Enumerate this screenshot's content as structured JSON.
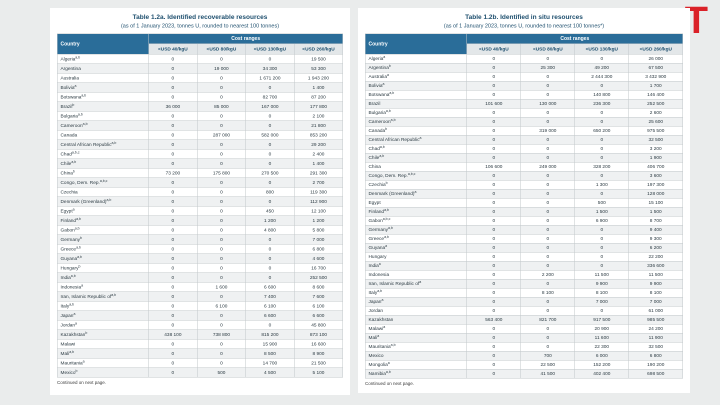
{
  "logo": {
    "letter": "T",
    "color": "#da2128"
  },
  "colors": {
    "header_blue": "#2a6d99",
    "subheader_bg": "#e3e7e9",
    "title_navy": "#1e4f6e",
    "zebra_row": "#eff1f2",
    "logo_red": "#da2128"
  },
  "tables": [
    {
      "title": "Table 1.2a. Identified recoverable resources",
      "subtitle": "(as of 1 January 2023, tonnes U, rounded to nearest 100 tonnes)",
      "header": {
        "country": "Country",
        "cost_ranges": "Cost ranges",
        "columns": [
          "<USD 40/kgU",
          "<USD 80/kgU",
          "<USD 130/kgU",
          "<USD 260/kgU"
        ]
      },
      "rows": [
        {
          "country": "Algeria",
          "sup": "a,b",
          "values": [
            "0",
            "0",
            "0",
            "19 500"
          ]
        },
        {
          "country": "Argentina",
          "sup": "",
          "values": [
            "0",
            "19 000",
            "34 300",
            "53 300"
          ]
        },
        {
          "country": "Australia",
          "sup": "",
          "values": [
            "0",
            "0",
            "1 671 200",
            "1 943 200"
          ]
        },
        {
          "country": "Bolivia",
          "sup": "a",
          "values": [
            "0",
            "0",
            "0",
            "1 400"
          ]
        },
        {
          "country": "Botswana",
          "sup": "a,b",
          "values": [
            "0",
            "0",
            "82 700",
            "87 200"
          ]
        },
        {
          "country": "Brazil",
          "sup": "b",
          "values": [
            "36 000",
            "85 000",
            "167 000",
            "177 800"
          ]
        },
        {
          "country": "Bulgaria",
          "sup": "a,b",
          "values": [
            "0",
            "0",
            "0",
            "2 100"
          ]
        },
        {
          "country": "Cameroon",
          "sup": "a,b",
          "values": [
            "0",
            "0",
            "0",
            "21 800"
          ]
        },
        {
          "country": "Canada",
          "sup": "",
          "values": [
            "0",
            "287 000",
            "582 000",
            "853 200"
          ]
        },
        {
          "country": "Central African Republic",
          "sup": "a,b",
          "values": [
            "0",
            "0",
            "0",
            "29 200"
          ]
        },
        {
          "country": "Chad",
          "sup": "a,b,c",
          "values": [
            "0",
            "0",
            "0",
            "2 400"
          ]
        },
        {
          "country": "Chile",
          "sup": "a,b",
          "values": [
            "0",
            "0",
            "0",
            "1 400"
          ]
        },
        {
          "country": "China",
          "sup": "b",
          "values": [
            "73 200",
            "175 800",
            "270 500",
            "291 300"
          ]
        },
        {
          "country": "Congo, Dem. Rep.",
          "sup": "a,b,c",
          "values": [
            "0",
            "0",
            "0",
            "2 700"
          ]
        },
        {
          "country": "Czechia",
          "sup": "",
          "values": [
            "0",
            "0",
            "800",
            "119 300"
          ]
        },
        {
          "country": "Denmark (Greenland)",
          "sup": "a,b",
          "values": [
            "0",
            "0",
            "0",
            "112 900"
          ]
        },
        {
          "country": "Egypt",
          "sup": "a",
          "values": [
            "0",
            "0",
            "450",
            "12 100"
          ]
        },
        {
          "country": "Finland",
          "sup": "a,b",
          "values": [
            "0",
            "0",
            "1 200",
            "1 200"
          ]
        },
        {
          "country": "Gabon",
          "sup": "a,b",
          "values": [
            "0",
            "0",
            "4 800",
            "5 800"
          ]
        },
        {
          "country": "Germany",
          "sup": "b",
          "values": [
            "0",
            "0",
            "0",
            "7 000"
          ]
        },
        {
          "country": "Greece",
          "sup": "a,b",
          "values": [
            "0",
            "0",
            "0",
            "6 800"
          ]
        },
        {
          "country": "Guyana",
          "sup": "a,b",
          "values": [
            "0",
            "0",
            "0",
            "4 600"
          ]
        },
        {
          "country": "Hungary",
          "sup": "b",
          "values": [
            "0",
            "0",
            "0",
            "16 700"
          ]
        },
        {
          "country": "India",
          "sup": "a,b",
          "values": [
            "0",
            "0",
            "0",
            "252 500"
          ]
        },
        {
          "country": "Indonesia",
          "sup": "a",
          "values": [
            "0",
            "1 600",
            "6 600",
            "8 600"
          ]
        },
        {
          "country": "Iran, Islamic Republic of",
          "sup": "a,b",
          "values": [
            "0",
            "0",
            "7 400",
            "7 600"
          ]
        },
        {
          "country": "Italy",
          "sup": "a,b",
          "values": [
            "0",
            "6 100",
            "6 100",
            "6 100"
          ]
        },
        {
          "country": "Japan",
          "sup": "a",
          "values": [
            "0",
            "0",
            "6 600",
            "6 600"
          ]
        },
        {
          "country": "Jordan",
          "sup": "a",
          "values": [
            "0",
            "0",
            "0",
            "45 800"
          ]
        },
        {
          "country": "Kazakhstan",
          "sup": "b",
          "values": [
            "438 100",
            "738 800",
            "815 200",
            "873 100"
          ]
        },
        {
          "country": "Malawi",
          "sup": "",
          "values": [
            "0",
            "0",
            "15 900",
            "16 600"
          ]
        },
        {
          "country": "Mali",
          "sup": "a,b",
          "values": [
            "0",
            "0",
            "8 500",
            "8 900"
          ]
        },
        {
          "country": "Mauritania",
          "sup": "a",
          "values": [
            "0",
            "0",
            "14 700",
            "21 500"
          ]
        },
        {
          "country": "Mexico",
          "sup": "b",
          "values": [
            "0",
            "500",
            "4 500",
            "5 100"
          ]
        }
      ],
      "footnote": "Continued on next page."
    },
    {
      "title": "Table 1.2b. Identified in situ resources",
      "subtitle": "(as of 1 January 2023, tonnes U, rounded to nearest 100 tonnes*)",
      "header": {
        "country": "Country",
        "cost_ranges": "Cost ranges",
        "columns": [
          "<USD 40/kgU",
          "<USD 80/kgU",
          "<USD 130/kgU",
          "<USD 260/kgU"
        ]
      },
      "rows": [
        {
          "country": "Algeria",
          "sup": "a",
          "values": [
            "0",
            "0",
            "0",
            "26 000"
          ]
        },
        {
          "country": "Argentina",
          "sup": "b",
          "values": [
            "0",
            "25 300",
            "49 200",
            "67 500"
          ]
        },
        {
          "country": "Australia",
          "sup": "a",
          "values": [
            "0",
            "0",
            "2 444 300",
            "3 432 900"
          ]
        },
        {
          "country": "Bolivia",
          "sup": "a",
          "values": [
            "0",
            "0",
            "0",
            "1 700"
          ]
        },
        {
          "country": "Botswana",
          "sup": "a,b",
          "values": [
            "0",
            "0",
            "140 800",
            "146 400"
          ]
        },
        {
          "country": "Brazil",
          "sup": "",
          "values": [
            "101 600",
            "130 000",
            "236 300",
            "252 500"
          ]
        },
        {
          "country": "Bulgaria",
          "sup": "a,b",
          "values": [
            "0",
            "0",
            "0",
            "2 600"
          ]
        },
        {
          "country": "Cameroon",
          "sup": "a,b",
          "values": [
            "0",
            "0",
            "0",
            "25 600"
          ]
        },
        {
          "country": "Canada",
          "sup": "b",
          "values": [
            "0",
            "319 000",
            "650 200",
            "975 500"
          ]
        },
        {
          "country": "Central African Republic",
          "sup": "a",
          "values": [
            "0",
            "0",
            "0",
            "32 500"
          ]
        },
        {
          "country": "Chad",
          "sup": "a,b",
          "values": [
            "0",
            "0",
            "0",
            "3 200"
          ]
        },
        {
          "country": "Chile",
          "sup": "a,b",
          "values": [
            "0",
            "0",
            "0",
            "1 900"
          ]
        },
        {
          "country": "China",
          "sup": "",
          "values": [
            "106 600",
            "249 000",
            "328 200",
            "406 700"
          ]
        },
        {
          "country": "Congo, Dem. Rep.",
          "sup": "a,b,c",
          "values": [
            "0",
            "0",
            "0",
            "3 600"
          ]
        },
        {
          "country": "Czechia",
          "sup": "b",
          "values": [
            "0",
            "0",
            "1 300",
            "197 300"
          ]
        },
        {
          "country": "Denmark (Greenland)",
          "sup": "a",
          "values": [
            "0",
            "0",
            "0",
            "128 000"
          ]
        },
        {
          "country": "Egypt",
          "sup": "",
          "values": [
            "0",
            "0",
            "500",
            "15 100"
          ]
        },
        {
          "country": "Finland",
          "sup": "a,b",
          "values": [
            "0",
            "0",
            "1 500",
            "1 500"
          ]
        },
        {
          "country": "Gabon",
          "sup": "a,b,c",
          "values": [
            "0",
            "0",
            "6 900",
            "8 700"
          ]
        },
        {
          "country": "Germany",
          "sup": "a,b",
          "values": [
            "0",
            "0",
            "0",
            "9 400"
          ]
        },
        {
          "country": "Greece",
          "sup": "a,b",
          "values": [
            "0",
            "0",
            "0",
            "9 300"
          ]
        },
        {
          "country": "Guyana",
          "sup": "a",
          "values": [
            "0",
            "0",
            "0",
            "6 200"
          ]
        },
        {
          "country": "Hungary",
          "sup": "",
          "values": [
            "0",
            "0",
            "0",
            "22 200"
          ]
        },
        {
          "country": "India",
          "sup": "a",
          "values": [
            "0",
            "0",
            "0",
            "336 600"
          ]
        },
        {
          "country": "Indonesia",
          "sup": "",
          "values": [
            "0",
            "2 200",
            "11 500",
            "11 500"
          ]
        },
        {
          "country": "Iran, Islamic Republic of",
          "sup": "a",
          "values": [
            "0",
            "0",
            "9 900",
            "9 900"
          ]
        },
        {
          "country": "Italy",
          "sup": "a,b",
          "values": [
            "0",
            "8 100",
            "8 100",
            "8 100"
          ]
        },
        {
          "country": "Japan",
          "sup": "a",
          "values": [
            "0",
            "0",
            "7 000",
            "7 000"
          ]
        },
        {
          "country": "Jordan",
          "sup": "",
          "values": [
            "0",
            "0",
            "0",
            "61 000"
          ]
        },
        {
          "country": "Kazakhstan",
          "sup": "",
          "values": [
            "563 400",
            "821 700",
            "917 500",
            "985 500"
          ]
        },
        {
          "country": "Malawi",
          "sup": "a",
          "values": [
            "0",
            "0",
            "20 900",
            "24 200"
          ]
        },
        {
          "country": "Mali",
          "sup": "a",
          "values": [
            "0",
            "0",
            "11 600",
            "11 900"
          ]
        },
        {
          "country": "Mauritania",
          "sup": "a,b",
          "values": [
            "0",
            "0",
            "22 300",
            "32 500"
          ]
        },
        {
          "country": "Mexico",
          "sup": "",
          "values": [
            "0",
            "700",
            "6 000",
            "6 800"
          ]
        },
        {
          "country": "Mongolia",
          "sup": "a",
          "values": [
            "0",
            "22 500",
            "152 200",
            "190 200"
          ]
        },
        {
          "country": "Namibia",
          "sup": "a,b",
          "values": [
            "0",
            "41 500",
            "402 400",
            "698 500"
          ]
        }
      ],
      "footnote": "Continued on next page."
    }
  ]
}
